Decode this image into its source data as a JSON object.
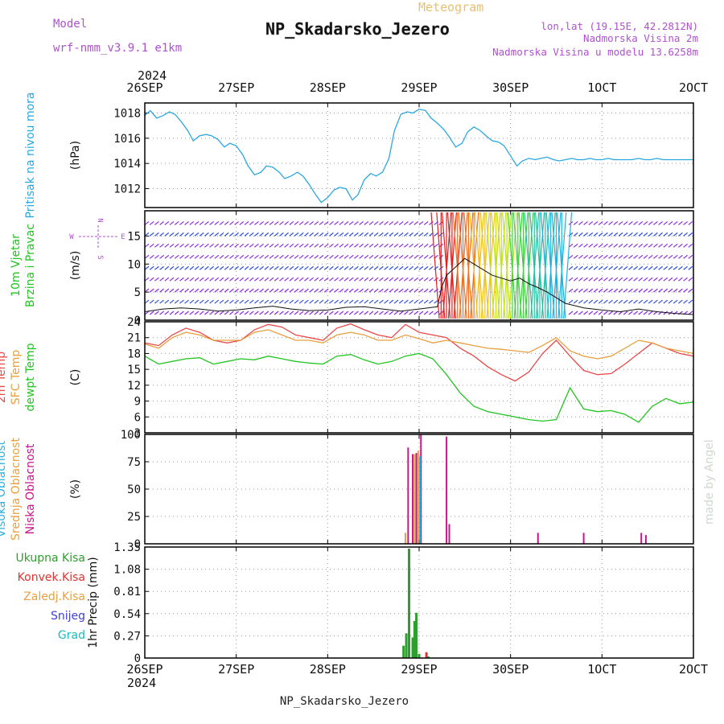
{
  "header": {
    "model_label": "Model",
    "model_name": "wrf-nmm_v3.9.1  e1km",
    "meteogram_label": "Meteogram",
    "title": "NP_Skadarsko_Jezero",
    "lonlat": "lon,lat (19.15E, 42.2812N)",
    "elevation": "Nadmorska Visina 2m",
    "model_elevation": "Nadmorska Visina u modelu 13.6258m",
    "top_year": "2024",
    "bottom_year": "2024",
    "footer": "NP_Skadarsko_Jezero",
    "watermark": "made by Angel"
  },
  "colors": {
    "pressure": "#2aa7e0",
    "t2m": "#e84a4a",
    "sfc": "#e8a040",
    "dewpt": "#22c422",
    "high_cloud": "#2ab0e0",
    "mid_cloud": "#e8a040",
    "low_cloud": "#c8168a",
    "total_precip": "#2e9e2e",
    "convective": "#e83030",
    "snow": "#4040d0",
    "graupel": "#20b8b8",
    "purple_text": "#b050d0",
    "meteogram_text": "#e8c070"
  },
  "x_axis": {
    "labels": [
      "26SEP",
      "27SEP",
      "28SEP",
      "29SEP",
      "30SEP",
      "1OCT",
      "2OCT"
    ],
    "range_days": [
      0,
      6
    ]
  },
  "panels": [
    {
      "id": "pressure",
      "labels": [
        {
          "text": "Pritisak na nivou mora",
          "color": "#2aa7e0"
        }
      ],
      "unit": "(hPa)",
      "ticks": [
        "1012",
        "1014",
        "1016",
        "1018"
      ],
      "ylim": [
        1010.5,
        1018.8
      ]
    },
    {
      "id": "wind",
      "labels": [
        {
          "text": "10m Vjetar",
          "color": "#22c422"
        },
        {
          "text": "Brzina i Pravac",
          "color": "#22c422"
        }
      ],
      "unit": "(m/s)",
      "ticks": [
        "0",
        "5",
        "10",
        "15"
      ],
      "ylim": [
        0,
        19.5
      ],
      "compass": {
        "n": "N",
        "w": "W",
        "e": "E",
        "s": "S"
      }
    },
    {
      "id": "temperature",
      "labels": [
        {
          "text": "2m Temp",
          "color": "#e84a4a"
        },
        {
          "text": "SFC Temp",
          "color": "#e8a040"
        },
        {
          "text": "dewpt Temp",
          "color": "#22c422"
        }
      ],
      "unit": "(C)",
      "ticks": [
        "3",
        "6",
        "9",
        "12",
        "15",
        "18",
        "21",
        "24"
      ],
      "ylim": [
        3,
        24
      ]
    },
    {
      "id": "cloud",
      "labels": [
        {
          "text": "Visoka Oblacnost",
          "color": "#2ab0e0"
        },
        {
          "text": "Srednja Oblacnost",
          "color": "#e8a040"
        },
        {
          "text": "Niska Oblacnost",
          "color": "#c8168a"
        }
      ],
      "unit": "(%)",
      "ticks": [
        "0",
        "25",
        "50",
        "75",
        "100"
      ],
      "ylim": [
        0,
        100
      ]
    },
    {
      "id": "precip",
      "labels": [],
      "unit": "1hr Precip (mm)",
      "ticks": [
        "0",
        "0.27",
        "0.54",
        "0.81",
        "1.08",
        "1.35"
      ],
      "ylim": [
        0,
        1.35
      ],
      "legend": [
        {
          "text": "Ukupna Kisa",
          "color": "#2e9e2e"
        },
        {
          "text": "Konvek.Kisa",
          "color": "#e83030"
        },
        {
          "text": "Zaledj.Kisa",
          "color": "#e8a040"
        },
        {
          "text": "Snijeg",
          "color": "#4040d0"
        },
        {
          "text": "Grad",
          "color": "#20b8b8"
        }
      ]
    }
  ],
  "chart_data": [
    {
      "type": "line",
      "series": [
        {
          "key": "pressure",
          "x": [
            0,
            0.06,
            0.13,
            0.2,
            0.27,
            0.33,
            0.4,
            0.47,
            0.53,
            0.6,
            0.67,
            0.73,
            0.8,
            0.87,
            0.93,
            1,
            1.07,
            1.13,
            1.2,
            1.27,
            1.33,
            1.4,
            1.47,
            1.53,
            1.6,
            1.67,
            1.73,
            1.8,
            1.87,
            1.93,
            2,
            2.07,
            2.13,
            2.2,
            2.27,
            2.33,
            2.4,
            2.47,
            2.53,
            2.6,
            2.67,
            2.73,
            2.8,
            2.87,
            2.93,
            3,
            3.07,
            3.13,
            3.2,
            3.27,
            3.33,
            3.4,
            3.47,
            3.53,
            3.6,
            3.67,
            3.73,
            3.8,
            3.87,
            3.93,
            4,
            4.07,
            4.13,
            4.2,
            4.27,
            4.33,
            4.4,
            4.47,
            4.53,
            4.6,
            4.67,
            4.73,
            4.8,
            4.87,
            4.93,
            5,
            5.07,
            5.13,
            5.2,
            5.27,
            5.33,
            5.4,
            5.47,
            5.53,
            5.6,
            5.67,
            5.73,
            5.8,
            5.87,
            5.93,
            6
          ],
          "y": [
            1017.8,
            1018.2,
            1017.6,
            1017.8,
            1018.1,
            1017.9,
            1017.3,
            1016.6,
            1015.8,
            1016.2,
            1016.3,
            1016.2,
            1015.9,
            1015.3,
            1015.6,
            1015.4,
            1014.7,
            1013.8,
            1013.1,
            1013.3,
            1013.8,
            1013.7,
            1013.3,
            1012.8,
            1013.0,
            1013.3,
            1013.0,
            1012.3,
            1011.5,
            1010.9,
            1011.3,
            1011.9,
            1012.1,
            1012.0,
            1011.1,
            1011.5,
            1012.7,
            1013.2,
            1013.0,
            1013.3,
            1014.4,
            1016.6,
            1017.9,
            1018.1,
            1018.0,
            1018.3,
            1018.2,
            1017.6,
            1017.2,
            1016.7,
            1016.1,
            1015.3,
            1015.6,
            1016.5,
            1016.9,
            1016.6,
            1016.2,
            1015.8,
            1015.7,
            1015.4,
            1014.6,
            1013.8,
            1014.2,
            1014.4,
            1014.3,
            1014.4,
            1014.5,
            1014.3,
            1014.2,
            1014.3,
            1014.4,
            1014.3,
            1014.3,
            1014.4,
            1014.3,
            1014.3,
            1014.4,
            1014.3,
            1014.3,
            1014.3,
            1014.3,
            1014.4,
            1014.3,
            1014.3,
            1014.4,
            1014.3,
            1014.3,
            1014.3,
            1014.3,
            1014.3,
            1014.3
          ]
        }
      ]
    },
    {
      "type": "line",
      "series": [
        {
          "key": "wind_speed",
          "x": [
            0,
            0.2,
            0.4,
            0.6,
            0.8,
            1.0,
            1.2,
            1.4,
            1.6,
            1.8,
            2.0,
            2.2,
            2.4,
            2.6,
            2.8,
            3.0,
            3.2,
            3.25,
            3.3,
            3.4,
            3.5,
            3.6,
            3.7,
            3.8,
            3.9,
            4.0,
            4.1,
            4.2,
            4.3,
            4.4,
            4.5,
            4.6,
            4.8,
            5.0,
            5.2,
            5.4,
            5.6,
            5.8,
            6.0
          ],
          "y": [
            1.5,
            2.0,
            2.2,
            2.0,
            1.6,
            1.8,
            2.2,
            2.5,
            2.0,
            1.7,
            1.8,
            2.3,
            2.4,
            2.0,
            1.6,
            2.0,
            2.4,
            6.0,
            8.0,
            9.5,
            11.0,
            10.0,
            9.0,
            8.0,
            7.5,
            7.0,
            7.5,
            6.5,
            5.8,
            5.0,
            4.0,
            3.0,
            2.2,
            1.8,
            1.5,
            2.0,
            1.5,
            1.2,
            1.0
          ]
        }
      ]
    },
    {
      "type": "line",
      "series": [
        {
          "key": "t2m",
          "x": [
            0,
            0.15,
            0.3,
            0.45,
            0.6,
            0.75,
            0.9,
            1.05,
            1.2,
            1.35,
            1.5,
            1.65,
            1.8,
            1.95,
            2.1,
            2.25,
            2.4,
            2.55,
            2.7,
            2.85,
            3.0,
            3.15,
            3.3,
            3.45,
            3.6,
            3.75,
            3.9,
            4.05,
            4.2,
            4.35,
            4.5,
            4.65,
            4.8,
            4.95,
            5.1,
            5.25,
            5.4,
            5.55,
            5.7,
            5.85,
            6.0
          ],
          "y": [
            20.0,
            19.5,
            21.5,
            22.8,
            22.0,
            20.5,
            20.0,
            20.5,
            22.5,
            23.5,
            23.0,
            21.5,
            21.0,
            20.5,
            22.8,
            23.6,
            22.5,
            21.5,
            21.0,
            23.5,
            22.0,
            21.5,
            21.0,
            19.0,
            17.5,
            15.5,
            14.0,
            12.8,
            14.5,
            18.0,
            20.5,
            17.5,
            14.8,
            14.0,
            14.2,
            16.0,
            18.0,
            20.0,
            19.0,
            18.0,
            17.5
          ]
        },
        {
          "key": "sfc",
          "x": [
            0,
            0.15,
            0.3,
            0.45,
            0.6,
            0.75,
            0.9,
            1.05,
            1.2,
            1.35,
            1.5,
            1.65,
            1.8,
            1.95,
            2.1,
            2.25,
            2.4,
            2.55,
            2.7,
            2.85,
            3.0,
            3.15,
            3.3,
            3.45,
            3.6,
            3.75,
            3.9,
            4.05,
            4.2,
            4.35,
            4.5,
            4.65,
            4.8,
            4.95,
            5.1,
            5.25,
            5.4,
            5.55,
            5.7,
            5.85,
            6.0
          ],
          "y": [
            19.8,
            19.0,
            21.0,
            22.0,
            21.5,
            20.5,
            20.5,
            20.5,
            22.0,
            22.5,
            21.5,
            20.5,
            20.5,
            20.0,
            21.5,
            22.0,
            21.5,
            20.5,
            20.5,
            21.5,
            20.8,
            20.0,
            20.5,
            20.0,
            19.5,
            19.0,
            18.8,
            18.5,
            18.2,
            19.5,
            21.0,
            18.5,
            17.5,
            17.0,
            17.5,
            19.0,
            20.5,
            20.0,
            19.0,
            18.5,
            18.0
          ]
        },
        {
          "key": "dewpt",
          "x": [
            0,
            0.15,
            0.3,
            0.45,
            0.6,
            0.75,
            0.9,
            1.05,
            1.2,
            1.35,
            1.5,
            1.65,
            1.8,
            1.95,
            2.1,
            2.25,
            2.4,
            2.55,
            2.7,
            2.85,
            3.0,
            3.15,
            3.3,
            3.45,
            3.6,
            3.75,
            3.9,
            4.05,
            4.2,
            4.35,
            4.5,
            4.65,
            4.8,
            4.95,
            5.1,
            5.25,
            5.4,
            5.55,
            5.7,
            5.85,
            6.0
          ],
          "y": [
            17.5,
            16.0,
            16.5,
            17.0,
            17.2,
            16.0,
            16.5,
            17.0,
            16.8,
            17.5,
            17.0,
            16.5,
            16.2,
            16.0,
            17.5,
            17.8,
            16.8,
            16.0,
            16.5,
            17.5,
            18.0,
            17.0,
            14.0,
            10.5,
            8.0,
            7.0,
            6.5,
            6.0,
            5.5,
            5.2,
            5.5,
            11.5,
            7.5,
            7.0,
            7.2,
            6.5,
            5.0,
            8.0,
            9.5,
            8.5,
            8.8
          ]
        }
      ]
    },
    {
      "type": "bar",
      "series": [
        {
          "key": "low_cloud",
          "x": [
            2.88,
            2.93,
            2.97,
            3.02,
            3.3,
            3.33,
            4.3,
            4.8,
            5.43,
            5.48
          ],
          "values": [
            88,
            82,
            83,
            100,
            98,
            18,
            10,
            10,
            10,
            8
          ]
        },
        {
          "key": "mid_cloud",
          "x": [
            2.85,
            2.95,
            2.99
          ],
          "values": [
            10,
            82,
            85
          ]
        },
        {
          "key": "high_cloud",
          "x": [
            3.01
          ],
          "values": [
            80
          ]
        }
      ]
    },
    {
      "type": "bar",
      "series": [
        {
          "key": "total_precip",
          "x": [
            2.83,
            2.86,
            2.89,
            2.93,
            2.95,
            2.97,
            3.0,
            3.1
          ],
          "values": [
            0.15,
            0.3,
            1.33,
            0.25,
            0.45,
            0.55,
            0.05,
            0.02
          ]
        },
        {
          "key": "convective",
          "x": [
            3.08
          ],
          "values": [
            0.07
          ]
        }
      ]
    }
  ]
}
